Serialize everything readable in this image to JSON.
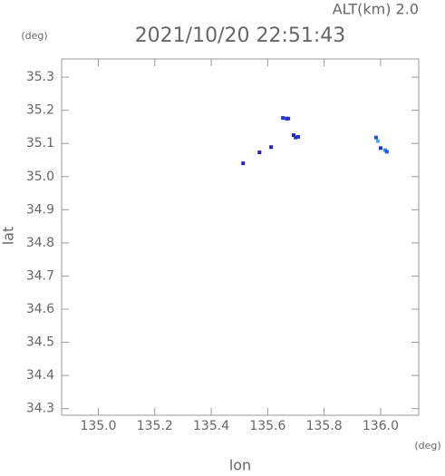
{
  "chart_data": {
    "type": "scatter",
    "title": "2021/10/20 22:51:43",
    "subtitle": "ALT(km) 2.0",
    "y_unit": "(deg)",
    "x_unit": "(deg)",
    "xlabel": "lon",
    "ylabel": "lat",
    "x": [
      135.513,
      135.571,
      135.612,
      135.654,
      135.667,
      135.673,
      135.692,
      135.699,
      135.708,
      135.984,
      135.99,
      136.0,
      136.016,
      136.022
    ],
    "values": [
      35.04,
      35.073,
      35.089,
      35.177,
      35.175,
      35.175,
      35.125,
      35.118,
      35.12,
      35.118,
      35.107,
      35.086,
      35.08,
      35.075
    ],
    "colors": [
      "#2222bb",
      "#2222bb",
      "#2222bb",
      "#2233cc",
      "#2233cc",
      "#2233cc",
      "#2222bb",
      "#2233cc",
      "#2233cc",
      "#2255ee",
      "#44aaff",
      "#2233cc",
      "#3388ff",
      "#2255ee"
    ],
    "xlim": [
      134.87,
      136.135
    ],
    "ylim": [
      34.28,
      35.355
    ],
    "xticks": [
      {
        "value": 135,
        "label": "135.0"
      },
      135.2,
      135.4,
      135.6,
      135.8,
      {
        "value": 136,
        "label": "136.0"
      }
    ],
    "yticks": [
      34.3,
      34.4,
      34.5,
      34.6,
      34.7,
      34.8,
      34.9,
      {
        "value": 35,
        "label": "35.0"
      },
      35.1,
      35.2,
      35.3
    ]
  }
}
